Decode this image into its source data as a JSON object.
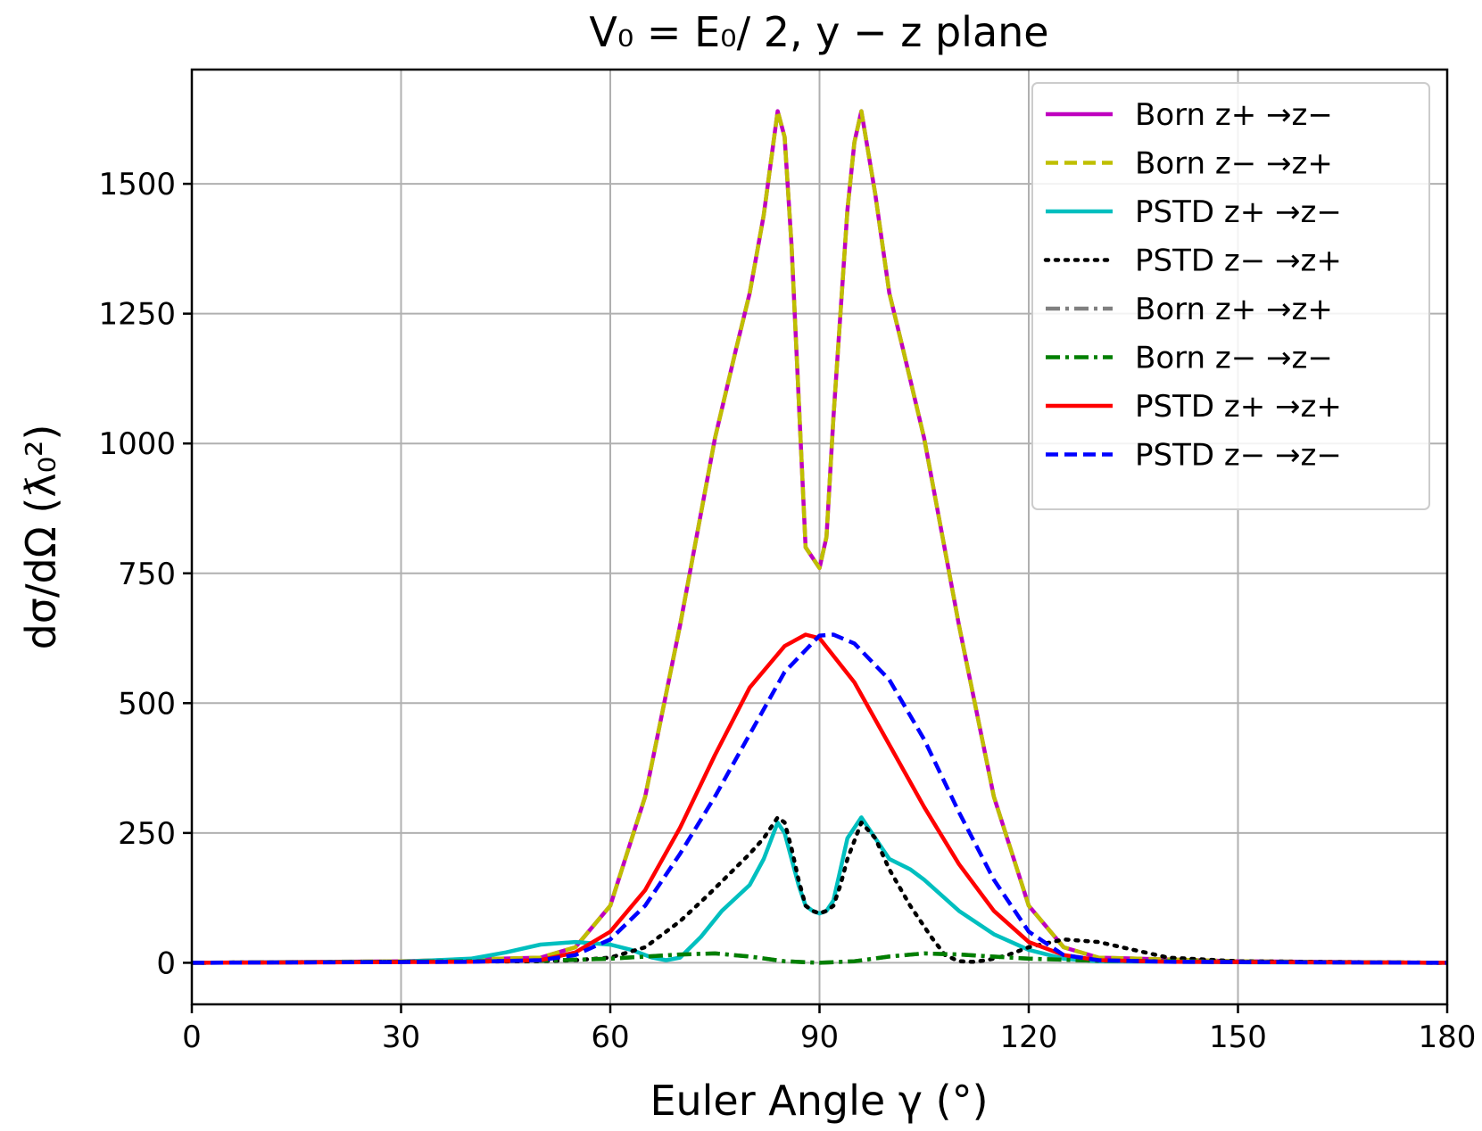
{
  "chart_data": {
    "type": "line",
    "title": "V₀ = E₀/ 2, y − z plane",
    "xlabel": "Euler Angle γ (°)",
    "ylabel": "dσ/dΩ (ƛ₀²)",
    "xlim": [
      0,
      180
    ],
    "ylim": [
      -80,
      1720
    ],
    "xticks": [
      0,
      30,
      60,
      90,
      120,
      150,
      180
    ],
    "yticks": [
      0,
      250,
      500,
      750,
      1000,
      1250,
      1500
    ],
    "grid": true,
    "legend_position": "top-right",
    "series": [
      {
        "name": "Born z+ →z−",
        "color": "#bf00bf",
        "style": "solid",
        "x": [
          0,
          30,
          50,
          55,
          60,
          65,
          70,
          75,
          78,
          80,
          82,
          84,
          85,
          86,
          88,
          89,
          90,
          91,
          92,
          94,
          95,
          96,
          98,
          100,
          102,
          105,
          110,
          115,
          120,
          125,
          130,
          150,
          180
        ],
        "y": [
          0,
          3,
          10,
          30,
          110,
          320,
          650,
          1010,
          1180,
          1290,
          1440,
          1640,
          1590,
          1380,
          800,
          780,
          760,
          820,
          1050,
          1450,
          1580,
          1640,
          1480,
          1290,
          1180,
          1010,
          650,
          320,
          110,
          30,
          10,
          3,
          0
        ]
      },
      {
        "name": "Born z− →z+",
        "color": "#bfbf00",
        "style": "dashed",
        "x": [
          0,
          30,
          50,
          55,
          60,
          65,
          70,
          75,
          78,
          80,
          82,
          84,
          85,
          86,
          88,
          89,
          90,
          91,
          92,
          94,
          95,
          96,
          98,
          100,
          102,
          105,
          110,
          115,
          120,
          125,
          130,
          150,
          180
        ],
        "y": [
          0,
          3,
          10,
          30,
          110,
          320,
          650,
          1010,
          1180,
          1290,
          1440,
          1640,
          1590,
          1380,
          800,
          780,
          760,
          820,
          1050,
          1450,
          1580,
          1640,
          1480,
          1290,
          1180,
          1010,
          650,
          320,
          110,
          30,
          10,
          3,
          0
        ]
      },
      {
        "name": "PSTD z+ →z−",
        "color": "#00bfbf",
        "style": "solid",
        "x": [
          0,
          30,
          40,
          45,
          50,
          55,
          60,
          63,
          66,
          68,
          70,
          73,
          76,
          80,
          82,
          84,
          85,
          86,
          87,
          88,
          89,
          90,
          91,
          92,
          93,
          94,
          96,
          98,
          100,
          103,
          105,
          110,
          115,
          120,
          125,
          130,
          140,
          150,
          180
        ],
        "y": [
          0,
          2,
          8,
          20,
          35,
          40,
          35,
          25,
          10,
          5,
          10,
          50,
          100,
          150,
          200,
          270,
          250,
          200,
          150,
          110,
          100,
          95,
          100,
          120,
          180,
          240,
          280,
          240,
          200,
          180,
          160,
          100,
          55,
          25,
          8,
          3,
          2,
          1,
          0
        ]
      },
      {
        "name": "PSTD z− →z+",
        "color": "#000000",
        "style": "dotted",
        "x": [
          0,
          30,
          50,
          55,
          60,
          65,
          70,
          74,
          77,
          80,
          82,
          84,
          85,
          86,
          87,
          88,
          89,
          90,
          91,
          92,
          93,
          94,
          96,
          98,
          100,
          103,
          106,
          108,
          110,
          112,
          114,
          117,
          120,
          125,
          130,
          135,
          140,
          150,
          180
        ],
        "y": [
          0,
          2,
          3,
          5,
          10,
          30,
          80,
          130,
          170,
          210,
          240,
          280,
          270,
          220,
          160,
          110,
          100,
          95,
          100,
          110,
          150,
          200,
          270,
          240,
          180,
          110,
          50,
          15,
          3,
          2,
          5,
          15,
          30,
          45,
          40,
          25,
          10,
          3,
          0
        ]
      },
      {
        "name": "Born z+ →z+",
        "color": "#808080",
        "style": "dashdot",
        "x": [
          0,
          30,
          50,
          60,
          70,
          75,
          80,
          85,
          90,
          95,
          100,
          105,
          110,
          120,
          130,
          150,
          180
        ],
        "y": [
          0,
          2,
          4,
          8,
          16,
          18,
          12,
          3,
          0,
          3,
          12,
          18,
          16,
          8,
          4,
          2,
          0
        ]
      },
      {
        "name": "Born z− →z−",
        "color": "#007f00",
        "style": "dashdot",
        "x": [
          0,
          30,
          50,
          60,
          70,
          75,
          80,
          85,
          90,
          95,
          100,
          105,
          110,
          120,
          130,
          150,
          180
        ],
        "y": [
          0,
          2,
          4,
          8,
          16,
          18,
          12,
          3,
          0,
          3,
          12,
          18,
          16,
          8,
          4,
          2,
          0
        ]
      },
      {
        "name": "PSTD z+ →z+",
        "color": "#ff0000",
        "style": "solid",
        "x": [
          0,
          40,
          50,
          55,
          60,
          65,
          70,
          75,
          80,
          85,
          88,
          90,
          95,
          100,
          105,
          110,
          115,
          120,
          125,
          130,
          140,
          180
        ],
        "y": [
          0,
          2,
          5,
          20,
          60,
          140,
          260,
          400,
          530,
          610,
          632,
          625,
          540,
          420,
          300,
          190,
          100,
          40,
          15,
          5,
          2,
          0
        ]
      },
      {
        "name": "PSTD z− →z−",
        "color": "#0000ff",
        "style": "dashed",
        "x": [
          0,
          40,
          50,
          55,
          60,
          65,
          70,
          75,
          80,
          85,
          90,
          92,
          95,
          100,
          105,
          110,
          115,
          120,
          125,
          130,
          140,
          180
        ],
        "y": [
          0,
          2,
          5,
          15,
          45,
          110,
          210,
          320,
          440,
          560,
          630,
          632,
          615,
          545,
          430,
          290,
          160,
          60,
          15,
          5,
          2,
          0
        ]
      }
    ]
  }
}
